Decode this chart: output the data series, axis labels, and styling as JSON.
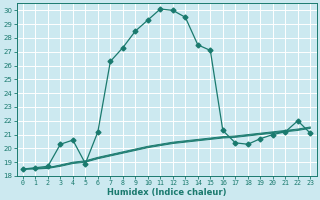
{
  "xlabel": "Humidex (Indice chaleur)",
  "ylabel": "",
  "bg_color": "#cce9f0",
  "grid_color": "#ffffff",
  "line_color": "#1a7a6e",
  "xlim": [
    -0.5,
    23.5
  ],
  "ylim": [
    18,
    30.5
  ],
  "yticks": [
    18,
    19,
    20,
    21,
    22,
    23,
    24,
    25,
    26,
    27,
    28,
    29,
    30
  ],
  "xticks": [
    0,
    1,
    2,
    3,
    4,
    5,
    6,
    7,
    8,
    9,
    10,
    11,
    12,
    13,
    14,
    15,
    16,
    17,
    18,
    19,
    20,
    21,
    22,
    23
  ],
  "series_main": {
    "x": [
      0,
      1,
      2,
      3,
      4,
      5,
      6,
      7,
      8,
      9,
      10,
      11,
      12,
      13,
      14,
      15,
      16,
      17,
      18,
      19,
      20,
      21,
      22,
      23
    ],
    "y": [
      18.5,
      18.6,
      18.7,
      20.3,
      20.6,
      18.9,
      21.2,
      26.3,
      27.3,
      28.5,
      29.3,
      30.1,
      30.0,
      29.5,
      27.5,
      27.1,
      21.3,
      20.4,
      20.3,
      20.7,
      21.0,
      21.2,
      22.0,
      21.1
    ]
  },
  "series_flat": [
    [
      18.5,
      18.55,
      18.6,
      18.8,
      19.0,
      19.1,
      19.35,
      19.55,
      19.75,
      19.95,
      20.15,
      20.3,
      20.45,
      20.55,
      20.65,
      20.75,
      20.85,
      20.9,
      21.0,
      21.1,
      21.2,
      21.3,
      21.4,
      21.55
    ],
    [
      18.5,
      18.55,
      18.6,
      18.75,
      18.95,
      19.05,
      19.3,
      19.5,
      19.7,
      19.9,
      20.1,
      20.25,
      20.4,
      20.5,
      20.6,
      20.7,
      20.8,
      20.85,
      20.95,
      21.05,
      21.15,
      21.25,
      21.35,
      21.5
    ],
    [
      18.5,
      18.5,
      18.55,
      18.7,
      18.9,
      19.0,
      19.25,
      19.45,
      19.65,
      19.85,
      20.05,
      20.2,
      20.35,
      20.45,
      20.55,
      20.65,
      20.75,
      20.8,
      20.9,
      21.0,
      21.1,
      21.2,
      21.3,
      21.45
    ]
  ]
}
